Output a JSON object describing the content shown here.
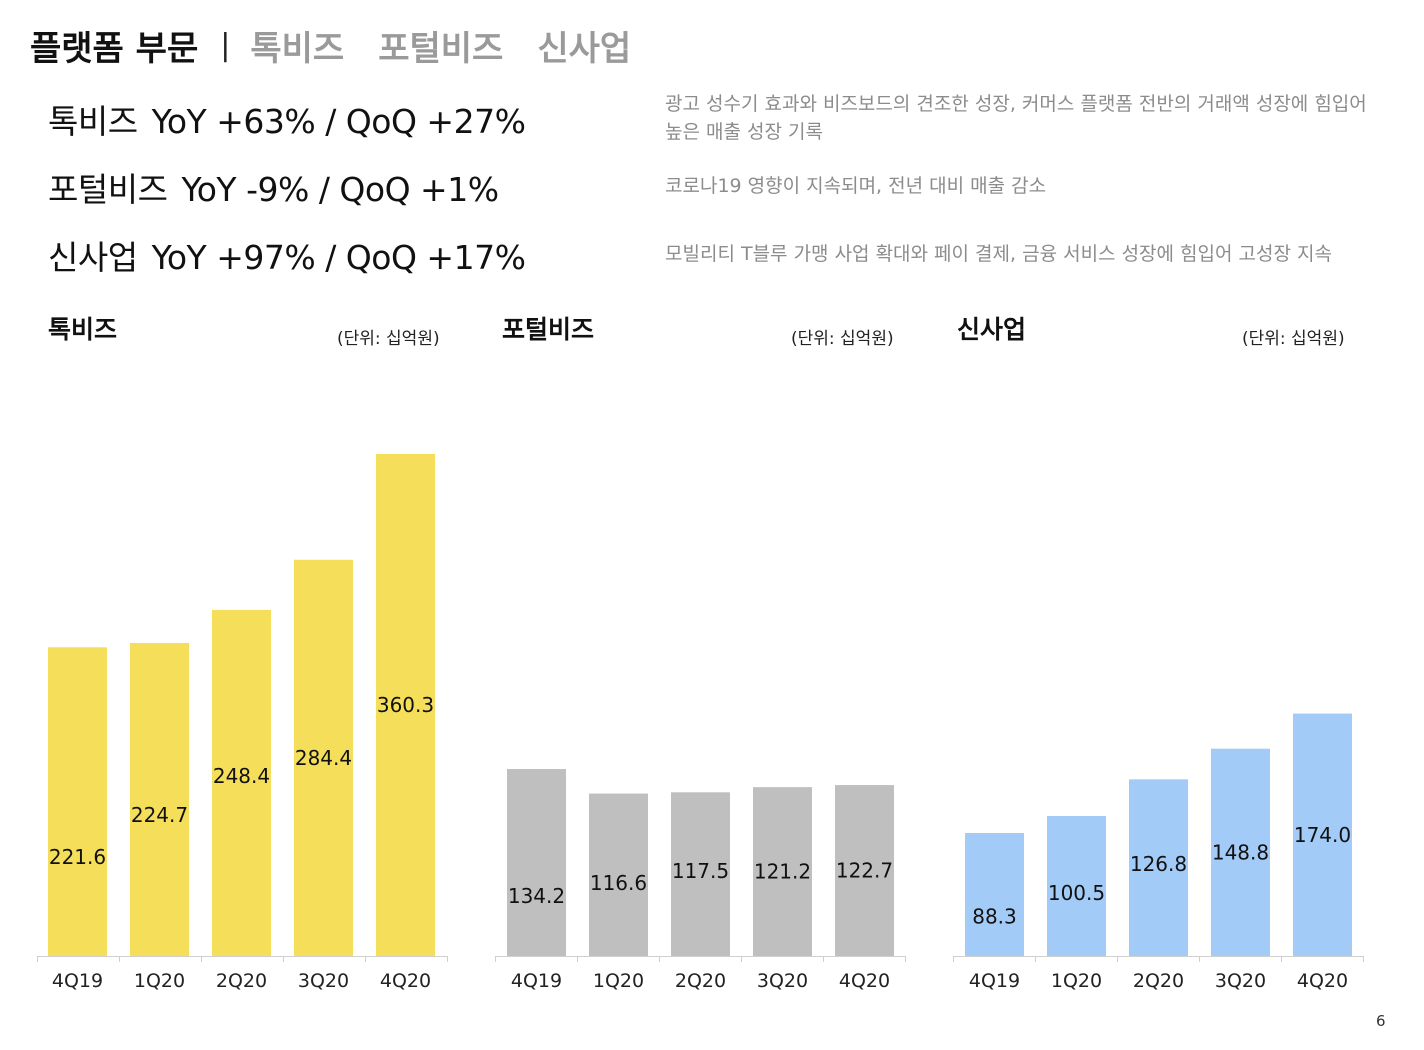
{
  "header": {
    "active_tab": "플랫폼 부문",
    "separator": "|",
    "tabs": [
      "톡비즈",
      "포털비즈",
      "신사업"
    ]
  },
  "metrics": [
    {
      "name": "톡비즈",
      "value": "YoY +63% / QoQ +27%",
      "note": [
        "광고 성수기 효과와 비즈보드의 견조한 성장, 커머스 플랫폼 전반의 거래액 성장에 힘입어",
        "높은 매출 성장 기록"
      ]
    },
    {
      "name": "포털비즈",
      "value": "YoY -9% / QoQ +1%",
      "note": [
        "코로나19 영향이 지속되며, 전년 대비 매출 감소"
      ]
    },
    {
      "name": "신사업",
      "value": "YoY +97% / QoQ +17%",
      "note": [
        "모빌리티 T블루 가맹 사업 확대와 페이 결제, 금융 서비스 성장에 힘입어 고성장 지속"
      ]
    }
  ],
  "chart_data": [
    {
      "type": "bar",
      "title": "톡비즈",
      "unit": "(단위: 십억원)",
      "categories": [
        "4Q19",
        "1Q20",
        "2Q20",
        "3Q20",
        "4Q20"
      ],
      "values": [
        221.6,
        224.7,
        248.4,
        284.4,
        360.3
      ],
      "labels": [
        "221.6",
        "224.7",
        "248.4",
        "284.4",
        "360.3"
      ],
      "color": "#f5df5a"
    },
    {
      "type": "bar",
      "title": "포털비즈",
      "unit": "(단위: 십억원)",
      "categories": [
        "4Q19",
        "1Q20",
        "2Q20",
        "3Q20",
        "4Q20"
      ],
      "values": [
        134.2,
        116.6,
        117.5,
        121.2,
        122.7
      ],
      "labels": [
        "134.2",
        "116.6",
        "117.5",
        "121.2",
        "122.7"
      ],
      "color": "#bfbfbf"
    },
    {
      "type": "bar",
      "title": "신사업",
      "unit": "(단위: 십억원)",
      "categories": [
        "4Q19",
        "1Q20",
        "2Q20",
        "3Q20",
        "4Q20"
      ],
      "values": [
        88.3,
        100.5,
        126.8,
        148.8,
        174.0
      ],
      "labels": [
        "88.3",
        "100.5",
        "126.8",
        "148.8",
        "174.0"
      ],
      "color": "#a3cbf7"
    }
  ],
  "page_number": "6"
}
